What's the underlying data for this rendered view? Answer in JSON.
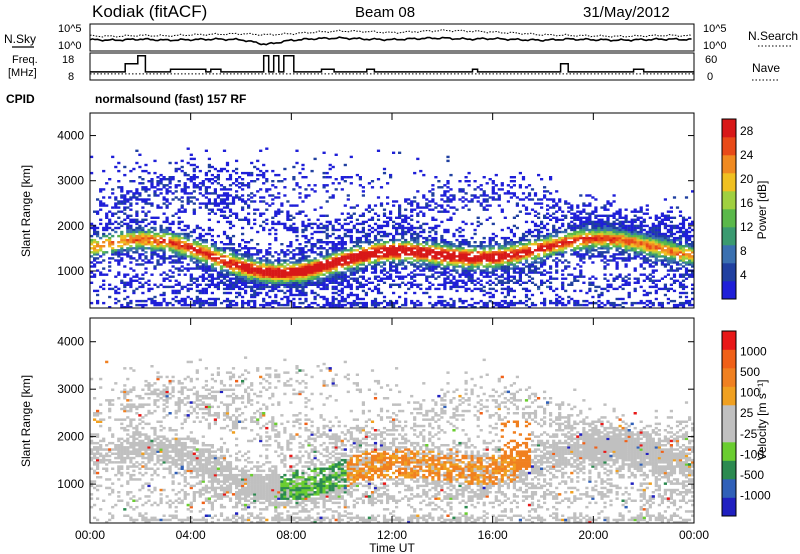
{
  "header": {
    "title": "Kodiak (fitACF)",
    "beam": "Beam 08",
    "date": "31/May/2012"
  },
  "control": {
    "nsky_label": "N.Sky",
    "nsearch_label": "N.Search",
    "freq_label_1": "Freq.",
    "freq_label_2": "[MHz]",
    "nave_label": "Nave",
    "cpid_label": "CPID",
    "cpid_value": "normalsound (fast) 157 RF",
    "noise_left_ticks": [
      "10^5",
      "10^0"
    ],
    "noise_right_ticks": [
      "10^5",
      "10^0"
    ],
    "freq_ticks": [
      "18",
      "8"
    ],
    "nave_ticks": [
      "60",
      "0"
    ]
  },
  "chart_data": [
    {
      "type": "line",
      "panel": "noise",
      "series": [
        {
          "name": "N.Sky",
          "x": [
            0,
            1,
            2,
            3,
            4,
            5,
            6,
            7,
            8,
            9,
            10,
            11,
            12,
            13,
            14,
            15,
            16,
            17,
            18,
            19,
            20,
            21,
            22,
            23,
            24
          ],
          "y": [
            2.1,
            2.0,
            2.2,
            2.0,
            2.1,
            2.2,
            2.1,
            1.2,
            2.0,
            2.3,
            2.4,
            2.2,
            2.1,
            2.3,
            2.4,
            2.2,
            2.3,
            2.1,
            2.0,
            2.2,
            2.1,
            2.0,
            2.1,
            2.2,
            2.1
          ]
        },
        {
          "name": "N.Search",
          "x": [
            0,
            1,
            2,
            3,
            4,
            5,
            6,
            7,
            8,
            9,
            10,
            11,
            12,
            13,
            14,
            15,
            16,
            17,
            18,
            19,
            20,
            21,
            22,
            23,
            24
          ],
          "y": [
            2.8,
            2.7,
            2.9,
            2.8,
            3.0,
            3.1,
            3.2,
            3.0,
            3.2,
            3.5,
            3.7,
            3.6,
            3.4,
            3.6,
            3.8,
            3.7,
            3.5,
            3.3,
            3.0,
            2.9,
            2.8,
            2.7,
            2.8,
            2.9,
            2.8
          ]
        }
      ],
      "ylim": [
        0,
        5
      ]
    },
    {
      "type": "line",
      "panel": "freq-nave",
      "series": [
        {
          "name": "Freq.",
          "x": [
            0,
            1.2,
            1.4,
            1.9,
            2.2,
            3.0,
            3.2,
            4.6,
            4.8,
            5.2,
            6.0,
            6.9,
            7.1,
            7.3,
            7.5,
            7.7,
            8.1,
            9.0,
            9.2,
            9.7,
            10.2,
            11.0,
            11.3,
            12.0,
            13.0,
            14.0,
            15.2,
            15.4,
            16.0,
            16.4,
            17.0,
            17.5,
            18.5,
            18.7,
            19.0,
            19.6,
            20.0,
            21.2,
            21.6,
            22.0,
            23.0,
            24.0
          ],
          "y": [
            11,
            11,
            14,
            17,
            11,
            11,
            12,
            11,
            12,
            11,
            11,
            17,
            11,
            17,
            11,
            17,
            11,
            11,
            12,
            11,
            11,
            12,
            11,
            11,
            11,
            11,
            12,
            11,
            11,
            11,
            11,
            11,
            11,
            14,
            11,
            11,
            11,
            11,
            12,
            11,
            11,
            11
          ]
        },
        {
          "name": "Nave",
          "x": [
            0,
            24
          ],
          "y": [
            11,
            11
          ]
        }
      ],
      "ylim": [
        8,
        18
      ]
    },
    {
      "type": "heatmap",
      "title": "Power",
      "xlabel": "",
      "ylabel": "Slant Range [km]",
      "xlim": [
        0,
        24
      ],
      "ylim": [
        180,
        4500
      ],
      "x_ticks": [
        "00:00",
        "04:00",
        "08:00",
        "12:00",
        "16:00",
        "20:00",
        "00:00"
      ],
      "y_ticks": [
        1000,
        2000,
        3000,
        4000
      ],
      "colorbar_label": "Power [dB]",
      "colorbar_ticks": [
        4,
        8,
        12,
        16,
        20,
        24,
        28
      ],
      "colorbar_range": [
        0,
        30
      ],
      "colors": [
        "#1f1fd8",
        "#2040a0",
        "#3a70b0",
        "#3a9a70",
        "#5ab84a",
        "#a0d040",
        "#f0c020",
        "#f08a20",
        "#e84a18",
        "#d81818"
      ]
    },
    {
      "type": "heatmap",
      "title": "Velocity",
      "xlabel": "Time UT",
      "ylabel": "Slant Range [km]",
      "xlim": [
        0,
        24
      ],
      "ylim": [
        180,
        4500
      ],
      "x_ticks": [
        "00:00",
        "04:00",
        "08:00",
        "12:00",
        "16:00",
        "20:00",
        "00:00"
      ],
      "y_ticks": [
        1000,
        2000,
        3000,
        4000
      ],
      "colorbar_label": "Velocity [m s⁻¹]",
      "colorbar_ticks": [
        1000,
        500,
        100,
        25,
        -25,
        -100,
        -500,
        -1000
      ],
      "colors": [
        "#2020c0",
        "#3060b8",
        "#2c8a50",
        "#6acd30",
        "#c0c0c0",
        "#c0c0c0",
        "#f0a020",
        "#f08020",
        "#f06018",
        "#e81818"
      ]
    }
  ]
}
